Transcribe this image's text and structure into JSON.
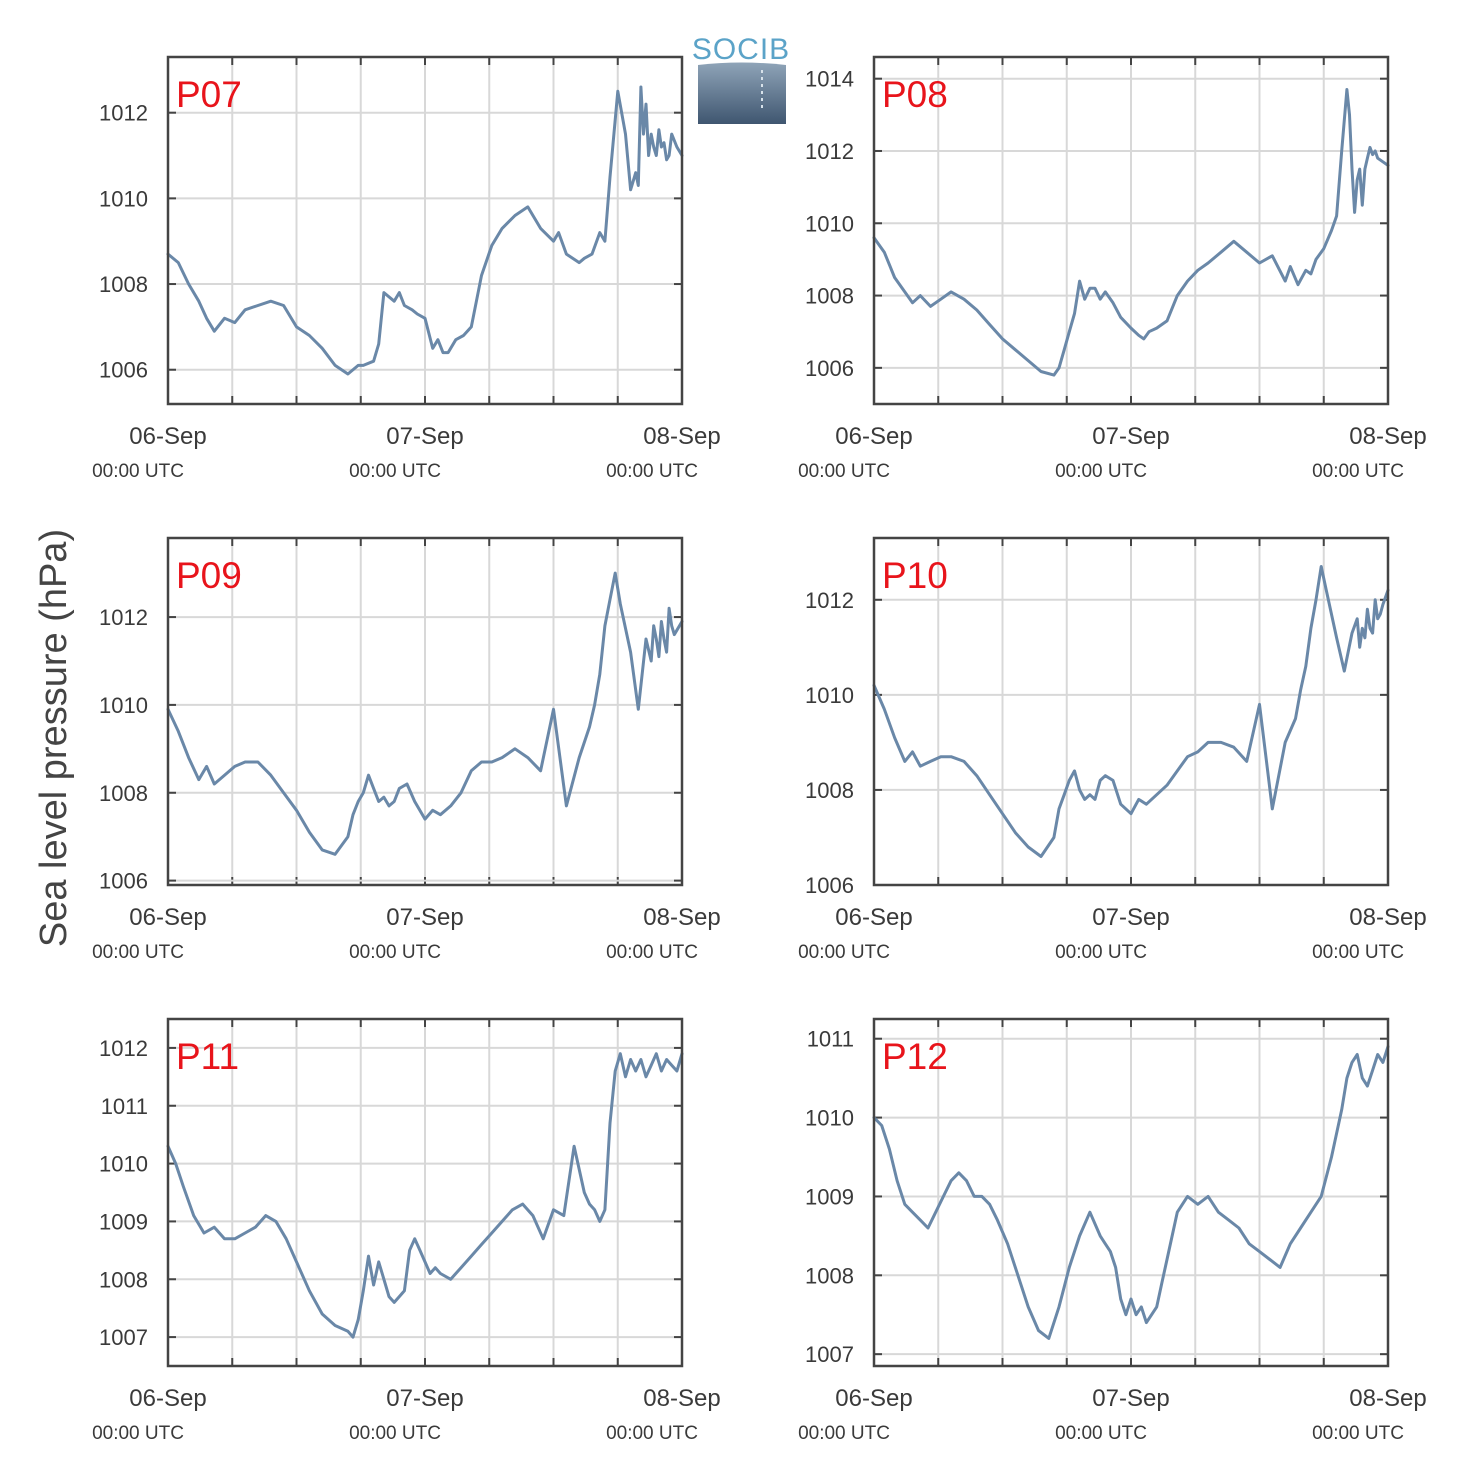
{
  "figure": {
    "ylabel": "Sea level pressure (hPa)",
    "logo_text": "SOCIB",
    "line_color": "#6a88a8",
    "label_color": "#e8141b"
  },
  "chart_data": [
    {
      "type": "line",
      "panel": "P07",
      "x_ticks": [
        {
          "label": "06-Sep",
          "sublabel": "00:00 UTC",
          "day": 0
        },
        {
          "label": "07-Sep",
          "sublabel": "00:00 UTC",
          "day": 1
        },
        {
          "label": "08-Sep",
          "sublabel": "00:00 UTC",
          "day": 2
        }
      ],
      "xlim": [
        0,
        2
      ],
      "ylim": [
        1005.2,
        1013.3
      ],
      "yticks": [
        1006,
        1008,
        1010,
        1012
      ],
      "grid": true,
      "x": [
        0.0,
        0.04,
        0.08,
        0.12,
        0.15,
        0.18,
        0.22,
        0.26,
        0.3,
        0.35,
        0.4,
        0.45,
        0.5,
        0.55,
        0.6,
        0.65,
        0.7,
        0.74,
        0.76,
        0.8,
        0.82,
        0.84,
        0.88,
        0.9,
        0.92,
        0.95,
        0.97,
        1.0,
        1.03,
        1.05,
        1.07,
        1.09,
        1.12,
        1.15,
        1.18,
        1.22,
        1.26,
        1.3,
        1.35,
        1.4,
        1.45,
        1.5,
        1.52,
        1.55,
        1.6,
        1.62,
        1.65,
        1.68,
        1.7,
        1.72,
        1.75,
        1.78,
        1.8,
        1.82,
        1.83,
        1.84,
        1.85,
        1.86,
        1.87,
        1.88,
        1.89,
        1.9,
        1.91,
        1.92,
        1.93,
        1.94,
        1.95,
        1.96,
        1.98,
        2.0
      ],
      "y": [
        1008.7,
        1008.5,
        1008.0,
        1007.6,
        1007.2,
        1006.9,
        1007.2,
        1007.1,
        1007.4,
        1007.5,
        1007.6,
        1007.5,
        1007.0,
        1006.8,
        1006.5,
        1006.1,
        1005.9,
        1006.1,
        1006.1,
        1006.2,
        1006.6,
        1007.8,
        1007.6,
        1007.8,
        1007.5,
        1007.4,
        1007.3,
        1007.2,
        1006.5,
        1006.7,
        1006.4,
        1006.4,
        1006.7,
        1006.8,
        1007.0,
        1008.2,
        1008.9,
        1009.3,
        1009.6,
        1009.8,
        1009.3,
        1009.0,
        1009.2,
        1008.7,
        1008.5,
        1008.6,
        1008.7,
        1009.2,
        1009.0,
        1010.5,
        1012.5,
        1011.5,
        1010.2,
        1010.6,
        1010.3,
        1012.6,
        1011.5,
        1012.2,
        1011.0,
        1011.5,
        1011.2,
        1011.0,
        1011.6,
        1011.2,
        1011.3,
        1010.9,
        1011.0,
        1011.5,
        1011.2,
        1011.0
      ]
    },
    {
      "type": "line",
      "panel": "P08",
      "x_ticks": [
        {
          "label": "06-Sep",
          "sublabel": "00:00 UTC",
          "day": 0
        },
        {
          "label": "07-Sep",
          "sublabel": "00:00 UTC",
          "day": 1
        },
        {
          "label": "08-Sep",
          "sublabel": "00:00 UTC",
          "day": 2
        }
      ],
      "xlim": [
        0,
        2
      ],
      "ylim": [
        1005.0,
        1014.6
      ],
      "yticks": [
        1006,
        1008,
        1010,
        1012,
        1014
      ],
      "grid": true,
      "x": [
        0.0,
        0.04,
        0.08,
        0.12,
        0.15,
        0.18,
        0.22,
        0.26,
        0.3,
        0.35,
        0.4,
        0.45,
        0.5,
        0.55,
        0.6,
        0.65,
        0.7,
        0.72,
        0.74,
        0.76,
        0.78,
        0.8,
        0.82,
        0.84,
        0.86,
        0.88,
        0.9,
        0.93,
        0.96,
        1.0,
        1.03,
        1.05,
        1.07,
        1.1,
        1.14,
        1.18,
        1.22,
        1.26,
        1.3,
        1.35,
        1.4,
        1.45,
        1.5,
        1.55,
        1.6,
        1.62,
        1.65,
        1.68,
        1.7,
        1.72,
        1.75,
        1.78,
        1.8,
        1.82,
        1.84,
        1.85,
        1.86,
        1.87,
        1.88,
        1.89,
        1.9,
        1.91,
        1.92,
        1.93,
        1.94,
        1.95,
        1.96,
        1.98,
        2.0
      ],
      "y": [
        1009.6,
        1009.2,
        1008.5,
        1008.1,
        1007.8,
        1008.0,
        1007.7,
        1007.9,
        1008.1,
        1007.9,
        1007.6,
        1007.2,
        1006.8,
        1006.5,
        1006.2,
        1005.9,
        1005.8,
        1006.0,
        1006.5,
        1007.0,
        1007.5,
        1008.4,
        1007.9,
        1008.2,
        1008.2,
        1007.9,
        1008.1,
        1007.8,
        1007.4,
        1007.1,
        1006.9,
        1006.8,
        1007.0,
        1007.1,
        1007.3,
        1008.0,
        1008.4,
        1008.7,
        1008.9,
        1009.2,
        1009.5,
        1009.2,
        1008.9,
        1009.1,
        1008.4,
        1008.8,
        1008.3,
        1008.7,
        1008.6,
        1009.0,
        1009.3,
        1009.8,
        1010.2,
        1012.0,
        1013.7,
        1013.0,
        1011.5,
        1010.3,
        1011.2,
        1011.5,
        1010.5,
        1011.5,
        1011.8,
        1012.1,
        1011.9,
        1012.0,
        1011.8,
        1011.7,
        1011.6
      ]
    },
    {
      "type": "line",
      "panel": "P09",
      "x_ticks": [
        {
          "label": "06-Sep",
          "sublabel": "00:00 UTC",
          "day": 0
        },
        {
          "label": "07-Sep",
          "sublabel": "00:00 UTC",
          "day": 1
        },
        {
          "label": "08-Sep",
          "sublabel": "00:00 UTC",
          "day": 2
        }
      ],
      "xlim": [
        0,
        2
      ],
      "ylim": [
        1005.9,
        1013.8
      ],
      "yticks": [
        1006,
        1008,
        1010,
        1012
      ],
      "grid": true,
      "x": [
        0.0,
        0.04,
        0.08,
        0.12,
        0.15,
        0.18,
        0.22,
        0.26,
        0.3,
        0.35,
        0.4,
        0.45,
        0.5,
        0.55,
        0.6,
        0.65,
        0.7,
        0.72,
        0.74,
        0.76,
        0.78,
        0.8,
        0.82,
        0.84,
        0.86,
        0.88,
        0.9,
        0.93,
        0.96,
        1.0,
        1.03,
        1.06,
        1.1,
        1.14,
        1.18,
        1.22,
        1.26,
        1.3,
        1.35,
        1.4,
        1.45,
        1.5,
        1.55,
        1.6,
        1.64,
        1.66,
        1.68,
        1.7,
        1.72,
        1.74,
        1.76,
        1.8,
        1.83,
        1.86,
        1.88,
        1.89,
        1.9,
        1.91,
        1.92,
        1.93,
        1.94,
        1.95,
        1.96,
        1.97,
        1.98,
        2.0
      ],
      "y": [
        1009.9,
        1009.4,
        1008.8,
        1008.3,
        1008.6,
        1008.2,
        1008.4,
        1008.6,
        1008.7,
        1008.7,
        1008.4,
        1008.0,
        1007.6,
        1007.1,
        1006.7,
        1006.6,
        1007.0,
        1007.5,
        1007.8,
        1008.0,
        1008.4,
        1008.1,
        1007.8,
        1007.9,
        1007.7,
        1007.8,
        1008.1,
        1008.2,
        1007.8,
        1007.4,
        1007.6,
        1007.5,
        1007.7,
        1008.0,
        1008.5,
        1008.7,
        1008.7,
        1008.8,
        1009.0,
        1008.8,
        1008.5,
        1009.9,
        1007.7,
        1008.8,
        1009.5,
        1010.0,
        1010.7,
        1011.8,
        1012.4,
        1013.0,
        1012.3,
        1011.2,
        1009.9,
        1011.5,
        1011.0,
        1011.8,
        1011.5,
        1011.1,
        1011.9,
        1011.5,
        1011.2,
        1012.2,
        1011.8,
        1011.6,
        1011.7,
        1011.9
      ]
    },
    {
      "type": "line",
      "panel": "P10",
      "x_ticks": [
        {
          "label": "06-Sep",
          "sublabel": "00:00 UTC",
          "day": 0
        },
        {
          "label": "07-Sep",
          "sublabel": "00:00 UTC",
          "day": 1
        },
        {
          "label": "08-Sep",
          "sublabel": "00:00 UTC",
          "day": 2
        }
      ],
      "xlim": [
        0,
        2
      ],
      "ylim": [
        1006.0,
        1013.3
      ],
      "yticks": [
        1006,
        1008,
        1010,
        1012
      ],
      "grid": true,
      "x": [
        0.0,
        0.04,
        0.08,
        0.12,
        0.15,
        0.18,
        0.22,
        0.26,
        0.3,
        0.35,
        0.4,
        0.45,
        0.5,
        0.55,
        0.6,
        0.65,
        0.7,
        0.72,
        0.74,
        0.76,
        0.78,
        0.8,
        0.82,
        0.84,
        0.86,
        0.88,
        0.9,
        0.93,
        0.96,
        1.0,
        1.03,
        1.06,
        1.1,
        1.14,
        1.18,
        1.22,
        1.26,
        1.3,
        1.35,
        1.4,
        1.45,
        1.5,
        1.55,
        1.6,
        1.64,
        1.66,
        1.68,
        1.7,
        1.72,
        1.74,
        1.76,
        1.8,
        1.83,
        1.86,
        1.88,
        1.89,
        1.9,
        1.91,
        1.92,
        1.93,
        1.94,
        1.95,
        1.96,
        1.97,
        1.98,
        2.0
      ],
      "y": [
        1010.2,
        1009.7,
        1009.1,
        1008.6,
        1008.8,
        1008.5,
        1008.6,
        1008.7,
        1008.7,
        1008.6,
        1008.3,
        1007.9,
        1007.5,
        1007.1,
        1006.8,
        1006.6,
        1007.0,
        1007.6,
        1007.9,
        1008.2,
        1008.4,
        1008.0,
        1007.8,
        1007.9,
        1007.8,
        1008.2,
        1008.3,
        1008.2,
        1007.7,
        1007.5,
        1007.8,
        1007.7,
        1007.9,
        1008.1,
        1008.4,
        1008.7,
        1008.8,
        1009.0,
        1009.0,
        1008.9,
        1008.6,
        1009.8,
        1007.6,
        1009.0,
        1009.5,
        1010.1,
        1010.6,
        1011.4,
        1012.0,
        1012.7,
        1012.2,
        1011.2,
        1010.5,
        1011.3,
        1011.6,
        1011.0,
        1011.4,
        1011.2,
        1011.8,
        1011.4,
        1011.3,
        1012.0,
        1011.6,
        1011.7,
        1011.9,
        1012.2
      ]
    },
    {
      "type": "line",
      "panel": "P11",
      "x_ticks": [
        {
          "label": "06-Sep",
          "sublabel": "00:00 UTC",
          "day": 0
        },
        {
          "label": "07-Sep",
          "sublabel": "00:00 UTC",
          "day": 1
        },
        {
          "label": "08-Sep",
          "sublabel": "00:00 UTC",
          "day": 2
        }
      ],
      "xlim": [
        0,
        2
      ],
      "ylim": [
        1006.5,
        1012.5
      ],
      "yticks": [
        1007,
        1008,
        1009,
        1010,
        1011,
        1012
      ],
      "grid": true,
      "x": [
        0.0,
        0.03,
        0.06,
        0.1,
        0.14,
        0.18,
        0.22,
        0.26,
        0.3,
        0.34,
        0.38,
        0.42,
        0.46,
        0.5,
        0.55,
        0.6,
        0.65,
        0.7,
        0.72,
        0.74,
        0.76,
        0.78,
        0.8,
        0.82,
        0.84,
        0.86,
        0.88,
        0.9,
        0.92,
        0.94,
        0.96,
        0.98,
        1.0,
        1.02,
        1.04,
        1.06,
        1.1,
        1.14,
        1.18,
        1.22,
        1.26,
        1.3,
        1.34,
        1.38,
        1.42,
        1.46,
        1.5,
        1.54,
        1.58,
        1.62,
        1.64,
        1.66,
        1.68,
        1.7,
        1.72,
        1.74,
        1.76,
        1.78,
        1.8,
        1.82,
        1.84,
        1.86,
        1.88,
        1.9,
        1.92,
        1.94,
        1.96,
        1.98,
        2.0
      ],
      "y": [
        1010.3,
        1010.0,
        1009.6,
        1009.1,
        1008.8,
        1008.9,
        1008.7,
        1008.7,
        1008.8,
        1008.9,
        1009.1,
        1009.0,
        1008.7,
        1008.3,
        1007.8,
        1007.4,
        1007.2,
        1007.1,
        1007.0,
        1007.3,
        1007.8,
        1008.4,
        1007.9,
        1008.3,
        1008.0,
        1007.7,
        1007.6,
        1007.7,
        1007.8,
        1008.5,
        1008.7,
        1008.5,
        1008.3,
        1008.1,
        1008.2,
        1008.1,
        1008.0,
        1008.2,
        1008.4,
        1008.6,
        1008.8,
        1009.0,
        1009.2,
        1009.3,
        1009.1,
        1008.7,
        1009.2,
        1009.1,
        1010.3,
        1009.5,
        1009.3,
        1009.2,
        1009.0,
        1009.2,
        1010.7,
        1011.6,
        1011.9,
        1011.5,
        1011.8,
        1011.6,
        1011.8,
        1011.5,
        1011.7,
        1011.9,
        1011.6,
        1011.8,
        1011.7,
        1011.6,
        1011.9
      ]
    },
    {
      "type": "line",
      "panel": "P12",
      "x_ticks": [
        {
          "label": "06-Sep",
          "sublabel": "00:00 UTC",
          "day": 0
        },
        {
          "label": "07-Sep",
          "sublabel": "00:00 UTC",
          "day": 1
        },
        {
          "label": "08-Sep",
          "sublabel": "00:00 UTC",
          "day": 2
        }
      ],
      "xlim": [
        0,
        2
      ],
      "ylim": [
        1006.85,
        1011.25
      ],
      "yticks": [
        1007,
        1008,
        1009,
        1010,
        1011
      ],
      "grid": true,
      "x": [
        0.0,
        0.03,
        0.06,
        0.09,
        0.12,
        0.15,
        0.18,
        0.21,
        0.24,
        0.27,
        0.3,
        0.33,
        0.36,
        0.39,
        0.42,
        0.45,
        0.48,
        0.52,
        0.56,
        0.6,
        0.64,
        0.68,
        0.72,
        0.76,
        0.8,
        0.84,
        0.88,
        0.9,
        0.92,
        0.94,
        0.96,
        0.98,
        1.0,
        1.02,
        1.04,
        1.06,
        1.08,
        1.1,
        1.12,
        1.14,
        1.18,
        1.22,
        1.26,
        1.3,
        1.34,
        1.38,
        1.42,
        1.46,
        1.5,
        1.54,
        1.58,
        1.62,
        1.66,
        1.7,
        1.74,
        1.78,
        1.82,
        1.84,
        1.86,
        1.88,
        1.9,
        1.92,
        1.94,
        1.96,
        1.98,
        2.0
      ],
      "y": [
        1010.0,
        1009.9,
        1009.6,
        1009.2,
        1008.9,
        1008.8,
        1008.7,
        1008.6,
        1008.8,
        1009.0,
        1009.2,
        1009.3,
        1009.2,
        1009.0,
        1009.0,
        1008.9,
        1008.7,
        1008.4,
        1008.0,
        1007.6,
        1007.3,
        1007.2,
        1007.6,
        1008.1,
        1008.5,
        1008.8,
        1008.5,
        1008.4,
        1008.3,
        1008.1,
        1007.7,
        1007.5,
        1007.7,
        1007.5,
        1007.6,
        1007.4,
        1007.5,
        1007.6,
        1007.9,
        1008.2,
        1008.8,
        1009.0,
        1008.9,
        1009.0,
        1008.8,
        1008.7,
        1008.6,
        1008.4,
        1008.3,
        1008.2,
        1008.1,
        1008.4,
        1008.6,
        1008.8,
        1009.0,
        1009.5,
        1010.1,
        1010.5,
        1010.7,
        1010.8,
        1010.5,
        1010.4,
        1010.6,
        1010.8,
        1010.7,
        1010.9
      ]
    }
  ]
}
